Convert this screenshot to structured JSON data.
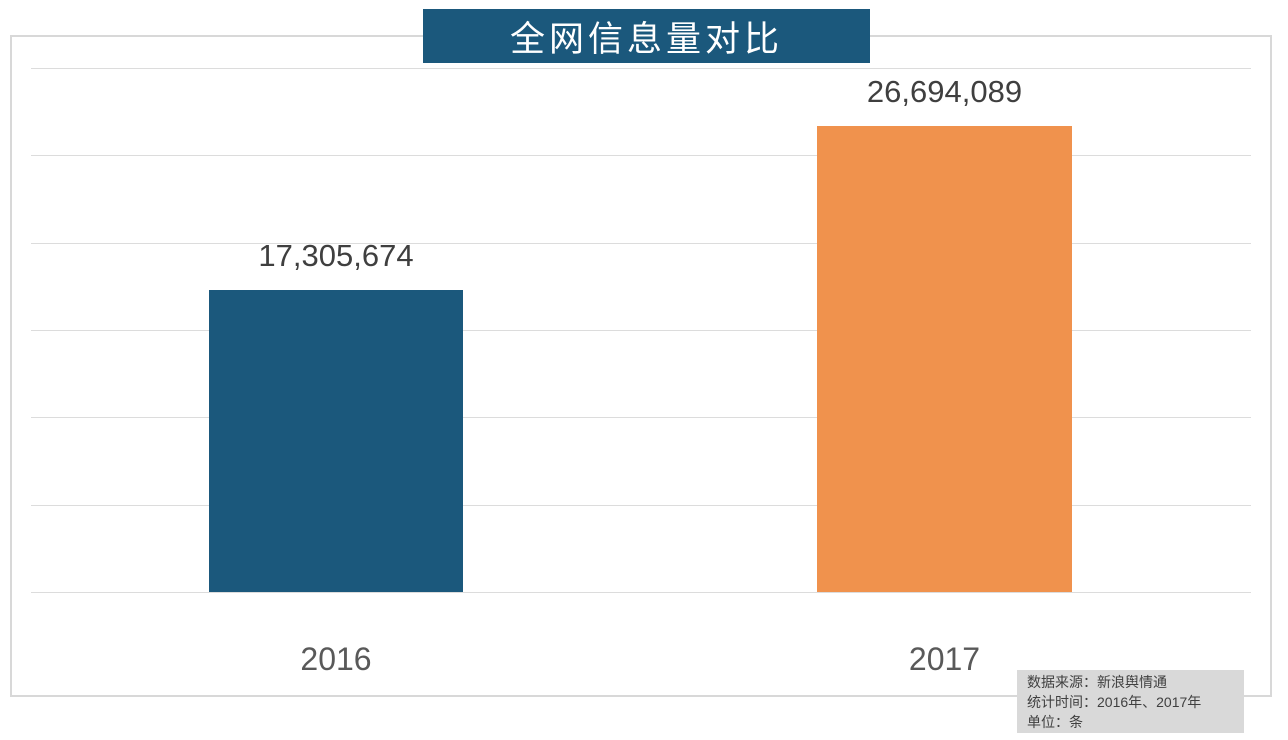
{
  "title": "全网信息量对比",
  "chart_data": {
    "type": "bar",
    "title": "全网信息量对比",
    "categories": [
      "2016",
      "2017"
    ],
    "values": [
      17305674,
      26694089
    ],
    "value_labels": [
      "17,305,674",
      "26,694,089"
    ],
    "xlabel": "",
    "ylabel": "",
    "ylim": [
      0,
      30000000
    ],
    "gridline_count": 7,
    "grid": true,
    "legend": "none",
    "bar_colors": [
      "#1b587c",
      "#f0924d"
    ]
  },
  "colors": {
    "title_bg": "#1b587c",
    "bar_2016": "#1b587c",
    "bar_2017": "#f0924d",
    "gridline": "#dcdcdc",
    "frame_border": "#d8d8d8",
    "value_text": "#3f3f3f",
    "axis_text": "#595959",
    "infobox_bg": "#d9d9d9",
    "infobox_text": "#404040"
  },
  "infobox": {
    "source_line": "数据来源：新浪舆情通",
    "period_line": "统计时间：2016年、2017年",
    "unit_line": "单位：条"
  }
}
